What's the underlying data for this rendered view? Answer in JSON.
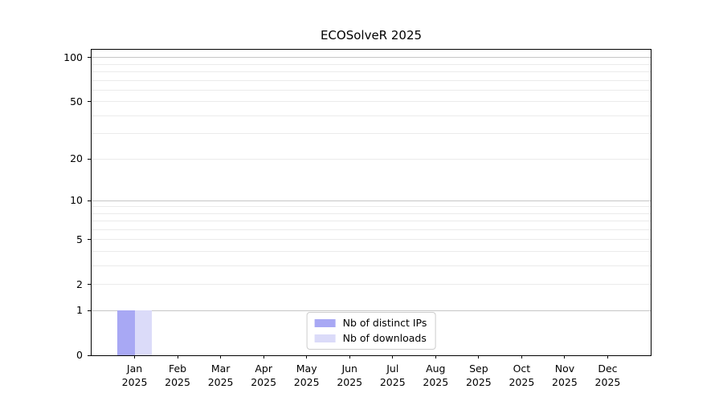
{
  "chart_data": {
    "type": "bar",
    "title": "ECOSolveR 2025",
    "categories": [
      {
        "month": "Jan",
        "year": "2025"
      },
      {
        "month": "Feb",
        "year": "2025"
      },
      {
        "month": "Mar",
        "year": "2025"
      },
      {
        "month": "Apr",
        "year": "2025"
      },
      {
        "month": "May",
        "year": "2025"
      },
      {
        "month": "Jun",
        "year": "2025"
      },
      {
        "month": "Jul",
        "year": "2025"
      },
      {
        "month": "Aug",
        "year": "2025"
      },
      {
        "month": "Sep",
        "year": "2025"
      },
      {
        "month": "Oct",
        "year": "2025"
      },
      {
        "month": "Nov",
        "year": "2025"
      },
      {
        "month": "Dec",
        "year": "2025"
      }
    ],
    "series": [
      {
        "name": "Nb of distinct IPs",
        "color": "#a8a8f4",
        "values": [
          1,
          0,
          0,
          0,
          0,
          0,
          0,
          0,
          0,
          0,
          0,
          0
        ]
      },
      {
        "name": "Nb of downloads",
        "color": "#dbdbf9",
        "values": [
          1,
          0,
          0,
          0,
          0,
          0,
          0,
          0,
          0,
          0,
          0,
          0
        ]
      }
    ],
    "yticks": [
      0,
      1,
      2,
      5,
      10,
      20,
      50,
      100
    ],
    "ylim": [
      0,
      113
    ],
    "yscale": "log1p",
    "xlabel": "",
    "ylabel": "",
    "grid": {
      "major_values": [
        1,
        10,
        100
      ],
      "minor_values": [
        2,
        3,
        4,
        5,
        6,
        7,
        8,
        9,
        20,
        30,
        40,
        50,
        60,
        70,
        80,
        90
      ]
    },
    "legend_position": "lower center",
    "colors": {
      "grid_major": "#c6c6c6",
      "grid_minor": "#ebebeb",
      "axis": "#000000",
      "background": "#ffffff",
      "text": "#000000"
    }
  }
}
